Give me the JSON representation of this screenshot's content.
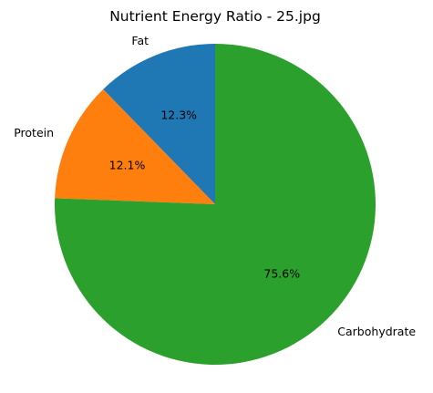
{
  "chart_data": {
    "type": "pie",
    "title": "Nutrient Energy Ratio - 25.jpg",
    "categories": [
      "Fat",
      "Protein",
      "Carbohydrate"
    ],
    "values": [
      12.3,
      12.1,
      75.6
    ],
    "value_labels": [
      "12.3%",
      "12.1%",
      "75.6%"
    ],
    "colors": [
      "#1f77b4",
      "#ff7f0e",
      "#2ca02c"
    ],
    "start_angle_deg": 90,
    "direction": "counterclockwise",
    "legend": "none"
  }
}
